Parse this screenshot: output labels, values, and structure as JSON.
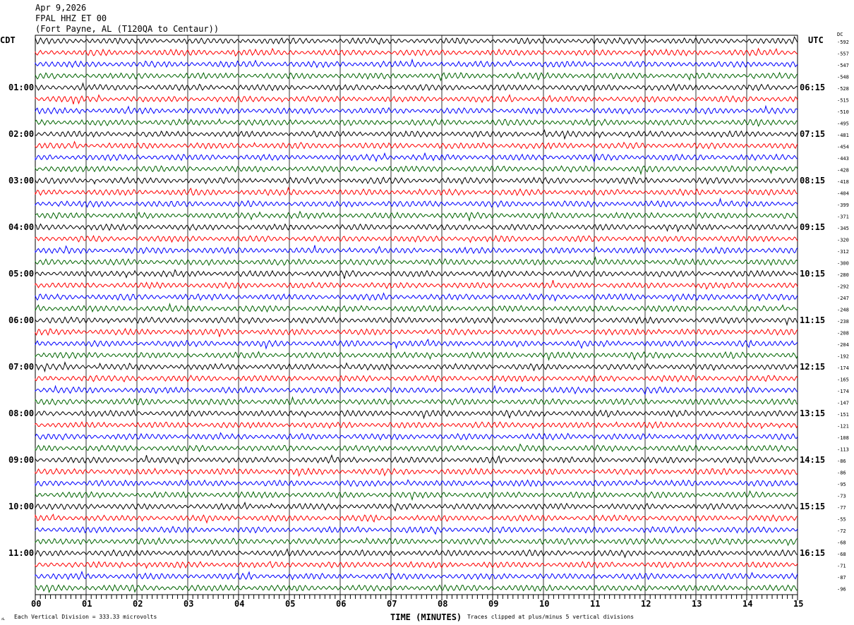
{
  "header": {
    "date": "Apr 9,2026",
    "station": "FPAL HHZ ET 00",
    "location": "(Fort Payne, AL (T120QA to Centaur))"
  },
  "colors": {
    "trace_cycle": [
      "#000000",
      "#ff0000",
      "#0000ff",
      "#006400"
    ],
    "grid": "#000000"
  },
  "chart_data": {
    "type": "line",
    "title": "FPAL HHZ ET 00",
    "xlabel": "TIME (MINUTES)",
    "left_axis_label": "CDT",
    "right_axis_label": "UTC",
    "dc_label": "DC",
    "xlim": [
      0,
      15
    ],
    "x_ticks": [
      "00",
      "01",
      "02",
      "03",
      "04",
      "05",
      "06",
      "07",
      "08",
      "09",
      "10",
      "11",
      "12",
      "13",
      "14",
      "15"
    ],
    "traces_per_hour": 4,
    "minutes_per_trace": 15,
    "left_hour_labels": [
      "01:00",
      "02:00",
      "03:00",
      "04:00",
      "05:00",
      "06:00",
      "07:00",
      "08:00",
      "09:00",
      "10:00",
      "11:00"
    ],
    "right_hour_labels": [
      "06:15",
      "07:15",
      "08:15",
      "09:15",
      "10:15",
      "11:15",
      "12:15",
      "13:15",
      "14:15",
      "15:15",
      "16:15"
    ],
    "dc_offsets": [
      "-592",
      "-557",
      "-547",
      "-548",
      "-528",
      "-515",
      "-510",
      "-495",
      "-481",
      "-454",
      "-443",
      "-428",
      "-418",
      "-404",
      "-399",
      "-371",
      "-345",
      "-320",
      "-312",
      "-300",
      "-280",
      "-292",
      "-247",
      "-248",
      "-238",
      "-208",
      "-204",
      "-192",
      "-174",
      "-165",
      "-174",
      "-147",
      "-151",
      "-121",
      "-108",
      "-113",
      "-86",
      "-86",
      "-95",
      "-73",
      "-77",
      "-55",
      "-72",
      "-68",
      "-68",
      "-71",
      "-87",
      "-96"
    ]
  },
  "footer": {
    "scale": "Each Vertical Division =  333.33 microvolts",
    "clip_note": "Traces clipped at plus/minus 5 vertical divisions",
    "corner_mark": "ᴊʟ"
  }
}
